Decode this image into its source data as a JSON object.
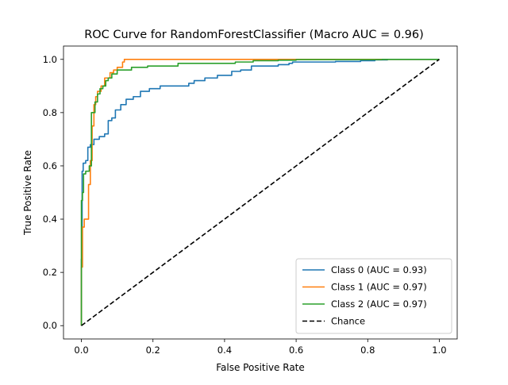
{
  "chart_data": {
    "type": "line",
    "title": "ROC Curve for RandomForestClassifier (Macro AUC = 0.96)",
    "xlabel": "False Positive Rate",
    "ylabel": "True Positive Rate",
    "xlim": [
      -0.05,
      1.05
    ],
    "ylim": [
      -0.05,
      1.05
    ],
    "xticks": [
      0.0,
      0.2,
      0.4,
      0.6,
      0.8,
      1.0
    ],
    "xtick_labels": [
      "0.0",
      "0.2",
      "0.4",
      "0.6",
      "0.8",
      "1.0"
    ],
    "yticks": [
      0.0,
      0.2,
      0.4,
      0.6,
      0.8,
      1.0
    ],
    "ytick_labels": [
      "0.0",
      "0.2",
      "0.4",
      "0.6",
      "0.8",
      "1.0"
    ],
    "grid": false,
    "legend_position": "lower-right",
    "series": [
      {
        "name": "Class 0 (AUC = 0.93)",
        "color": "#1f77b4",
        "style": "solid",
        "x": [
          0,
          0,
          0.002,
          0.002,
          0.005,
          0.005,
          0.012,
          0.012,
          0.018,
          0.018,
          0.025,
          0.025,
          0.035,
          0.035,
          0.05,
          0.05,
          0.065,
          0.065,
          0.075,
          0.075,
          0.085,
          0.085,
          0.095,
          0.095,
          0.11,
          0.11,
          0.125,
          0.125,
          0.145,
          0.145,
          0.165,
          0.165,
          0.19,
          0.19,
          0.22,
          0.22,
          0.3,
          0.3,
          0.315,
          0.315,
          0.345,
          0.345,
          0.38,
          0.38,
          0.42,
          0.42,
          0.445,
          0.445,
          0.475,
          0.475,
          0.55,
          0.55,
          0.58,
          0.58,
          0.59,
          0.59,
          0.71,
          0.71,
          0.78,
          0.78,
          0.82,
          0.82,
          0.855,
          0.855,
          1.0
        ],
        "y": [
          0,
          0.25,
          0.25,
          0.58,
          0.58,
          0.61,
          0.61,
          0.62,
          0.62,
          0.67,
          0.67,
          0.68,
          0.68,
          0.7,
          0.7,
          0.71,
          0.71,
          0.72,
          0.72,
          0.77,
          0.77,
          0.78,
          0.78,
          0.81,
          0.81,
          0.83,
          0.83,
          0.85,
          0.85,
          0.86,
          0.86,
          0.88,
          0.88,
          0.89,
          0.89,
          0.9,
          0.9,
          0.91,
          0.91,
          0.92,
          0.92,
          0.93,
          0.93,
          0.94,
          0.94,
          0.955,
          0.955,
          0.96,
          0.96,
          0.975,
          0.975,
          0.98,
          0.98,
          0.985,
          0.985,
          0.99,
          0.99,
          0.992,
          0.992,
          0.995,
          0.995,
          0.998,
          0.998,
          1.0,
          1.0
        ]
      },
      {
        "name": "Class 1 (AUC = 0.97)",
        "color": "#ff7f0e",
        "style": "solid",
        "x": [
          0,
          0,
          0.003,
          0.003,
          0.008,
          0.008,
          0.02,
          0.02,
          0.025,
          0.025,
          0.03,
          0.03,
          0.035,
          0.035,
          0.04,
          0.04,
          0.045,
          0.045,
          0.055,
          0.055,
          0.065,
          0.065,
          0.08,
          0.08,
          0.09,
          0.09,
          0.1,
          0.1,
          0.115,
          0.115,
          0.12,
          0.12,
          1.0
        ],
        "y": [
          0,
          0.22,
          0.22,
          0.37,
          0.37,
          0.4,
          0.4,
          0.53,
          0.53,
          0.62,
          0.62,
          0.75,
          0.75,
          0.83,
          0.83,
          0.86,
          0.86,
          0.88,
          0.88,
          0.9,
          0.9,
          0.93,
          0.93,
          0.95,
          0.95,
          0.96,
          0.96,
          0.97,
          0.97,
          0.99,
          0.99,
          1.0,
          1.0
        ]
      },
      {
        "name": "Class 2 (AUC = 0.97)",
        "color": "#2ca02c",
        "style": "solid",
        "x": [
          0,
          0,
          0.003,
          0.003,
          0.006,
          0.006,
          0.012,
          0.012,
          0.022,
          0.022,
          0.028,
          0.028,
          0.038,
          0.038,
          0.045,
          0.045,
          0.052,
          0.052,
          0.06,
          0.06,
          0.068,
          0.068,
          0.075,
          0.075,
          0.085,
          0.085,
          0.1,
          0.1,
          0.14,
          0.14,
          0.185,
          0.185,
          0.27,
          0.27,
          0.43,
          0.43,
          0.48,
          0.48,
          0.55,
          0.55,
          0.6,
          0.6,
          0.84,
          0.84,
          1.0
        ],
        "y": [
          0,
          0.47,
          0.47,
          0.5,
          0.5,
          0.57,
          0.57,
          0.58,
          0.58,
          0.6,
          0.6,
          0.8,
          0.8,
          0.84,
          0.84,
          0.87,
          0.87,
          0.89,
          0.89,
          0.9,
          0.9,
          0.92,
          0.92,
          0.93,
          0.93,
          0.945,
          0.945,
          0.96,
          0.96,
          0.97,
          0.97,
          0.975,
          0.975,
          0.985,
          0.985,
          0.99,
          0.99,
          0.995,
          0.995,
          0.997,
          0.997,
          0.999,
          0.999,
          1.0,
          1.0
        ]
      },
      {
        "name": "Chance",
        "color": "#000000",
        "style": "dashed",
        "x": [
          0,
          1
        ],
        "y": [
          0,
          1
        ]
      }
    ]
  }
}
